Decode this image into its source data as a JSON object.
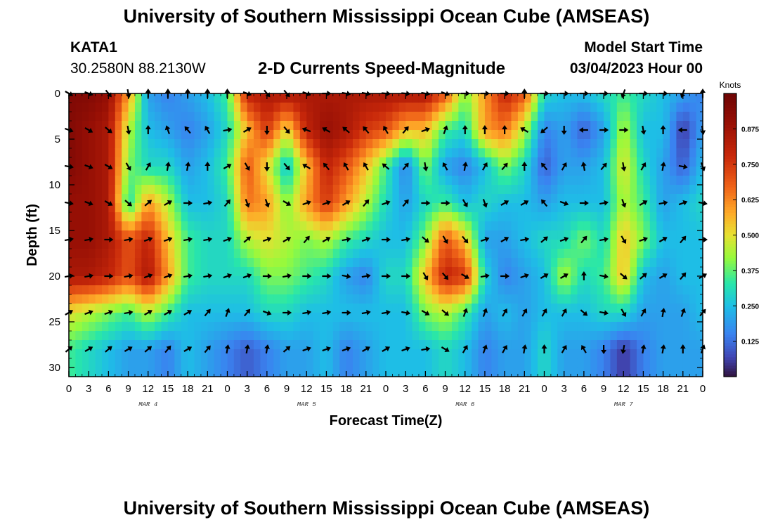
{
  "page": {
    "title": "University of Southern Mississippi Ocean Cube (AMSEAS)",
    "title_repeat": "University of Southern Mississippi Ocean Cube (AMSEAS)",
    "station": "KATA1",
    "coordinates": "30.2580N  88.2130W",
    "subtitle": "2-D Currents Speed-Magnitude",
    "model_start_label": "Model Start Time",
    "model_start_value": "03/04/2023 Hour 00"
  },
  "chart_data": {
    "type": "heatmap",
    "title": "2-D Currents Speed-Magnitude",
    "xlabel": "Forecast Time(Z)",
    "ylabel": "Depth (ft)",
    "x_ticks": [
      "0",
      "3",
      "6",
      "9",
      "12",
      "15",
      "18",
      "21",
      "0",
      "3",
      "6",
      "9",
      "12",
      "15",
      "18",
      "21",
      "0",
      "3",
      "6",
      "9",
      "12",
      "15",
      "18",
      "21",
      "0",
      "3",
      "6",
      "9",
      "12",
      "15",
      "18",
      "21",
      "0"
    ],
    "x_range_hours": [
      0,
      96
    ],
    "date_labels": [
      {
        "text": "MAR 4",
        "hour": 12
      },
      {
        "text": "MAR 5",
        "hour": 36
      },
      {
        "text": "MAR 6",
        "hour": 60
      },
      {
        "text": "MAR 7",
        "hour": 84
      }
    ],
    "y_ticks": [
      "0",
      "5",
      "10",
      "15",
      "20",
      "25",
      "30"
    ],
    "y_range_ft": [
      0,
      31
    ],
    "colorbar": {
      "title": "Knots",
      "min": 0.0,
      "max": 1.0,
      "tick_labels": [
        "0.875",
        "0.750",
        "0.625",
        "0.500",
        "0.375",
        "0.250",
        "0.125"
      ],
      "tick_values": [
        0.875,
        0.75,
        0.625,
        0.5,
        0.375,
        0.25,
        0.125
      ]
    },
    "depths_ft": [
      0,
      4,
      8,
      12,
      16,
      20,
      24,
      28
    ],
    "hours": [
      0,
      3,
      6,
      9,
      12,
      15,
      18,
      21,
      24,
      27,
      30,
      33,
      36,
      39,
      42,
      45,
      48,
      51,
      54,
      57,
      60,
      63,
      66,
      69,
      72,
      75,
      78,
      81,
      84,
      87,
      90,
      93,
      96
    ],
    "speed_knots": [
      [
        0.95,
        0.95,
        0.9,
        0.6,
        0.2,
        0.15,
        0.2,
        0.25,
        0.35,
        0.8,
        0.85,
        0.85,
        0.85,
        0.85,
        0.85,
        0.85,
        0.85,
        0.85,
        0.85,
        0.7,
        0.4,
        0.6,
        0.8,
        0.7,
        0.3,
        0.25,
        0.25,
        0.3,
        0.35,
        0.3,
        0.25,
        0.2,
        0.15
      ],
      [
        0.95,
        0.9,
        0.85,
        0.45,
        0.25,
        0.2,
        0.15,
        0.2,
        0.3,
        0.55,
        0.75,
        0.5,
        0.8,
        0.9,
        0.85,
        0.75,
        0.7,
        0.55,
        0.55,
        0.35,
        0.3,
        0.6,
        0.65,
        0.45,
        0.15,
        0.2,
        0.1,
        0.2,
        0.45,
        0.25,
        0.25,
        0.05,
        0.2
      ],
      [
        0.95,
        0.9,
        0.85,
        0.4,
        0.3,
        0.3,
        0.2,
        0.25,
        0.35,
        0.7,
        0.5,
        0.25,
        0.55,
        0.8,
        0.7,
        0.55,
        0.35,
        0.15,
        0.4,
        0.2,
        0.15,
        0.25,
        0.4,
        0.3,
        0.1,
        0.2,
        0.2,
        0.25,
        0.5,
        0.3,
        0.2,
        0.1,
        0.25
      ],
      [
        0.9,
        0.9,
        0.85,
        0.3,
        0.6,
        0.45,
        0.25,
        0.25,
        0.3,
        0.65,
        0.6,
        0.4,
        0.6,
        0.75,
        0.6,
        0.45,
        0.3,
        0.2,
        0.3,
        0.35,
        0.25,
        0.3,
        0.25,
        0.25,
        0.2,
        0.25,
        0.25,
        0.25,
        0.45,
        0.35,
        0.2,
        0.25,
        0.3
      ],
      [
        0.9,
        0.9,
        0.85,
        0.7,
        0.8,
        0.55,
        0.35,
        0.3,
        0.3,
        0.45,
        0.5,
        0.45,
        0.4,
        0.45,
        0.35,
        0.3,
        0.25,
        0.25,
        0.4,
        0.7,
        0.55,
        0.2,
        0.2,
        0.25,
        0.3,
        0.3,
        0.4,
        0.3,
        0.55,
        0.4,
        0.25,
        0.25,
        0.25
      ],
      [
        0.85,
        0.85,
        0.8,
        0.7,
        0.85,
        0.6,
        0.35,
        0.3,
        0.3,
        0.3,
        0.4,
        0.4,
        0.35,
        0.3,
        0.2,
        0.15,
        0.3,
        0.3,
        0.55,
        0.8,
        0.75,
        0.3,
        0.15,
        0.2,
        0.25,
        0.45,
        0.3,
        0.35,
        0.55,
        0.25,
        0.2,
        0.25,
        0.25
      ],
      [
        0.5,
        0.45,
        0.4,
        0.35,
        0.45,
        0.35,
        0.25,
        0.25,
        0.25,
        0.25,
        0.3,
        0.3,
        0.25,
        0.25,
        0.25,
        0.25,
        0.25,
        0.25,
        0.4,
        0.45,
        0.35,
        0.2,
        0.25,
        0.2,
        0.25,
        0.25,
        0.25,
        0.3,
        0.3,
        0.2,
        0.2,
        0.2,
        0.25
      ],
      [
        0.35,
        0.3,
        0.25,
        0.2,
        0.2,
        0.15,
        0.25,
        0.2,
        0.15,
        0.1,
        0.15,
        0.2,
        0.2,
        0.25,
        0.15,
        0.2,
        0.25,
        0.25,
        0.25,
        0.3,
        0.25,
        0.15,
        0.2,
        0.2,
        0.3,
        0.2,
        0.2,
        0.15,
        0.05,
        0.15,
        0.2,
        0.2,
        0.2
      ]
    ],
    "direction_deg": [
      [
        120,
        110,
        140,
        170,
        0,
        0,
        0,
        0,
        0,
        110,
        140,
        140,
        110,
        90,
        100,
        100,
        95,
        95,
        100,
        110,
        90,
        90,
        90,
        0,
        90,
        90,
        90,
        90,
        200,
        90,
        90,
        200,
        0
      ],
      [
        110,
        120,
        130,
        170,
        0,
        340,
        320,
        330,
        80,
        60,
        180,
        140,
        290,
        300,
        310,
        320,
        330,
        40,
        70,
        20,
        0,
        0,
        0,
        300,
        230,
        180,
        270,
        90,
        90,
        170,
        0,
        270,
        170
      ],
      [
        100,
        110,
        120,
        150,
        30,
        10,
        10,
        0,
        60,
        150,
        180,
        140,
        300,
        320,
        330,
        330,
        310,
        40,
        170,
        330,
        10,
        30,
        40,
        0,
        320,
        30,
        350,
        40,
        170,
        30,
        10,
        100,
        160
      ],
      [
        100,
        110,
        120,
        130,
        50,
        60,
        90,
        80,
        40,
        160,
        160,
        120,
        70,
        70,
        60,
        40,
        70,
        40,
        90,
        90,
        150,
        160,
        60,
        60,
        320,
        110,
        90,
        80,
        160,
        60,
        80,
        70,
        100
      ],
      [
        80,
        80,
        90,
        80,
        70,
        70,
        80,
        80,
        70,
        50,
        70,
        60,
        40,
        60,
        80,
        70,
        90,
        80,
        130,
        150,
        140,
        70,
        60,
        80,
        50,
        70,
        40,
        80,
        150,
        70,
        60,
        40,
        90
      ],
      [
        80,
        80,
        90,
        80,
        70,
        70,
        80,
        80,
        70,
        70,
        90,
        80,
        90,
        90,
        100,
        80,
        90,
        90,
        150,
        140,
        120,
        80,
        90,
        70,
        60,
        60,
        0,
        100,
        130,
        50,
        60,
        40,
        60
      ],
      [
        60,
        70,
        70,
        80,
        60,
        60,
        60,
        40,
        20,
        40,
        110,
        90,
        80,
        80,
        90,
        80,
        80,
        100,
        120,
        130,
        20,
        20,
        30,
        30,
        30,
        30,
        130,
        100,
        150,
        30,
        10,
        20,
        40
      ],
      [
        50,
        60,
        50,
        60,
        50,
        40,
        60,
        40,
        10,
        10,
        10,
        50,
        70,
        70,
        70,
        60,
        60,
        70,
        80,
        120,
        30,
        20,
        30,
        10,
        0,
        30,
        330,
        180,
        190,
        10,
        10,
        0,
        20
      ]
    ]
  }
}
